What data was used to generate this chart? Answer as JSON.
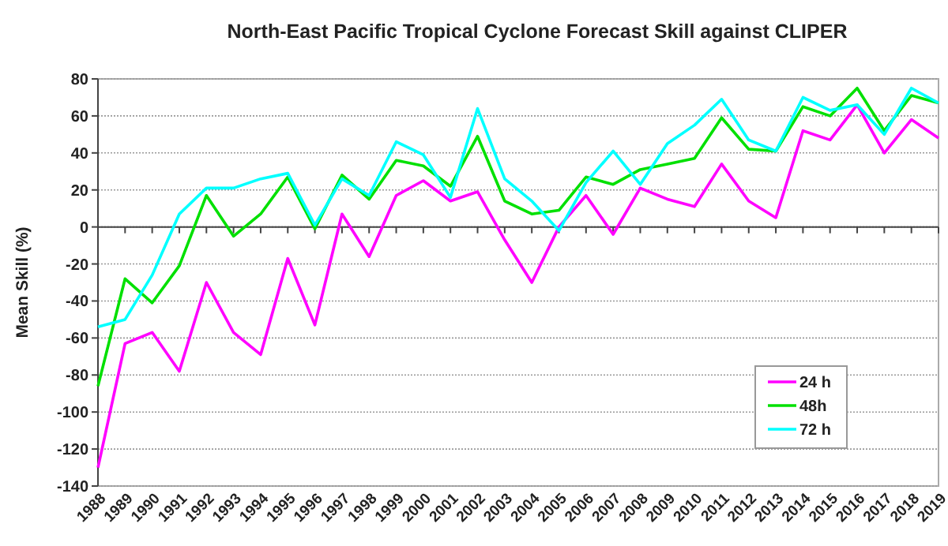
{
  "chart_data": {
    "type": "line",
    "title": "North-East Pacific Tropical Cyclone Forecast Skill against CLIPER",
    "ylabel": "Mean Skill (%)",
    "categories": [
      "1988",
      "1989",
      "1990",
      "1991",
      "1992",
      "1993",
      "1994",
      "1995",
      "1996",
      "1997",
      "1998",
      "1999",
      "2000",
      "2001",
      "2002",
      "2003",
      "2004",
      "2005",
      "2006",
      "2007",
      "2008",
      "2009",
      "2010",
      "2011",
      "2012",
      "2013",
      "2014",
      "2015",
      "2016",
      "2017",
      "2018",
      "2019"
    ],
    "series": [
      {
        "name": "24 h",
        "color": "#ff00ff",
        "values": [
          -130,
          -63,
          -57,
          -78,
          -30,
          -57,
          -69,
          -17,
          -53,
          7,
          -16,
          17,
          25,
          14,
          19,
          -7,
          -30,
          0,
          17,
          -4,
          21,
          15,
          11,
          34,
          14,
          5,
          52,
          47,
          66,
          40,
          58,
          48
        ]
      },
      {
        "name": "48h",
        "color": "#00e000",
        "values": [
          -86,
          -28,
          -41,
          -21,
          17,
          -5,
          7,
          27,
          -1,
          28,
          15,
          36,
          33,
          22,
          49,
          14,
          7,
          9,
          27,
          23,
          31,
          34,
          37,
          59,
          42,
          41,
          65,
          60,
          75,
          52,
          71,
          67
        ]
      },
      {
        "name": "72 h",
        "color": "#00ffff",
        "values": [
          -54,
          -50,
          -26,
          7,
          21,
          21,
          26,
          29,
          1,
          26,
          17,
          46,
          39,
          16,
          64,
          26,
          14,
          -2,
          24,
          41,
          23,
          45,
          55,
          69,
          47,
          41,
          70,
          63,
          66,
          50,
          75,
          67
        ]
      }
    ],
    "ylim": [
      -140,
      80
    ],
    "yticks": [
      -140,
      -120,
      -100,
      -80,
      -60,
      -40,
      -20,
      0,
      20,
      40,
      60,
      80
    ],
    "grid": "y",
    "legend": "bottom right",
    "marker": "none",
    "line_style": "solid"
  }
}
